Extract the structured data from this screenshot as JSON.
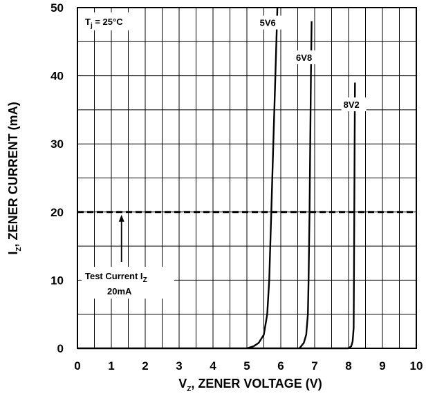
{
  "chart_data": {
    "type": "line",
    "xlabel": {
      "main": "V",
      "sub": "Z",
      "rest": ", ZENER VOLTAGE (V)"
    },
    "ylabel": {
      "main": "I",
      "sub": "Z",
      "rest": ", ZENER CURRENT (mA)"
    },
    "xlim": [
      0,
      10
    ],
    "ylim": [
      0,
      50
    ],
    "x_ticks": [
      "0",
      "1",
      "2",
      "3",
      "4",
      "5",
      "6",
      "7",
      "8",
      "9",
      "10"
    ],
    "y_ticks": [
      "0",
      "10",
      "20",
      "30",
      "40",
      "50"
    ],
    "grid": true,
    "condition": {
      "main": "T",
      "sub": "j",
      "rest": " = 25°C"
    },
    "series": [
      {
        "name": "5V6",
        "points": [
          [
            5.0,
            0
          ],
          [
            5.2,
            0.3
          ],
          [
            5.35,
            0.8
          ],
          [
            5.5,
            2
          ],
          [
            5.6,
            5
          ],
          [
            5.66,
            10
          ],
          [
            5.72,
            20
          ],
          [
            5.78,
            30
          ],
          [
            5.84,
            40
          ],
          [
            5.9,
            50
          ]
        ]
      },
      {
        "name": "6V8",
        "points": [
          [
            6.55,
            0
          ],
          [
            6.6,
            0.3
          ],
          [
            6.68,
            0.8
          ],
          [
            6.75,
            2
          ],
          [
            6.8,
            5
          ],
          [
            6.82,
            10
          ],
          [
            6.85,
            20
          ],
          [
            6.87,
            30
          ],
          [
            6.89,
            40
          ],
          [
            6.91,
            48
          ]
        ]
      },
      {
        "name": "8V2",
        "points": [
          [
            8.0,
            0
          ],
          [
            8.08,
            0.3
          ],
          [
            8.12,
            1
          ],
          [
            8.15,
            3
          ],
          [
            8.16,
            10
          ],
          [
            8.17,
            20
          ],
          [
            8.18,
            30
          ],
          [
            8.19,
            39
          ]
        ]
      }
    ],
    "reference_line": {
      "y": 20,
      "style": "dashed"
    },
    "annotation": {
      "line1_main": "Test Current I",
      "line1_sub": "Z",
      "line2": "20mA",
      "arrow_target": [
        1.3,
        20
      ]
    }
  }
}
